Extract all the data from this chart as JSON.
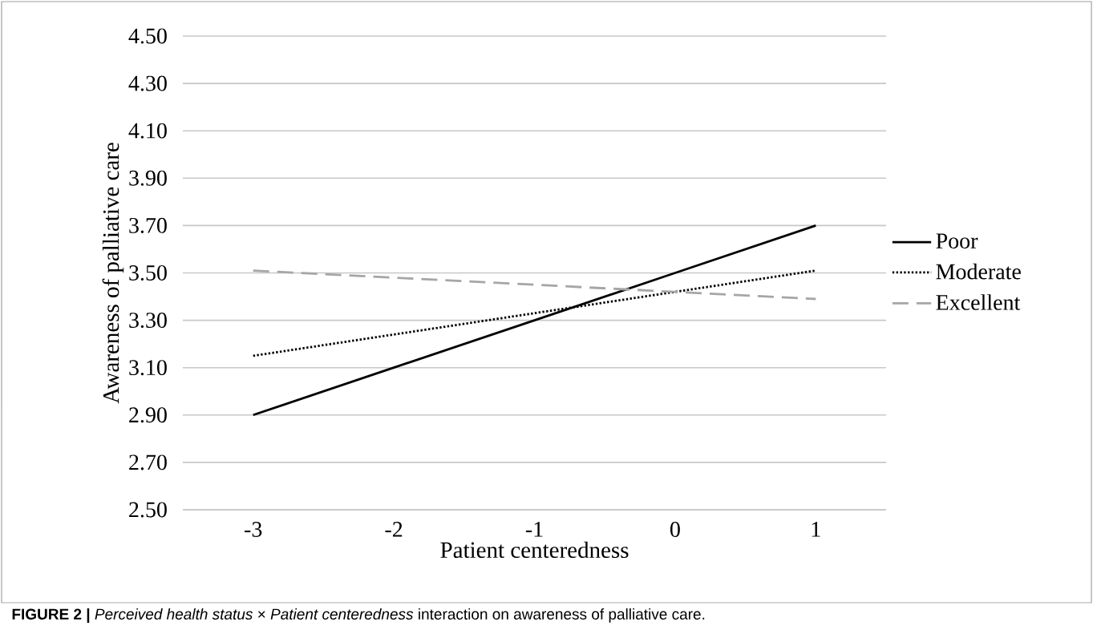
{
  "chart_data": {
    "type": "line",
    "xlabel": "Patient centeredness",
    "ylabel": "Awareness of palliative care",
    "categories": [
      "-3",
      "-2",
      "-1",
      "0",
      "1"
    ],
    "series": [
      {
        "name": "Poor",
        "color": "#000000",
        "line_style": "solid",
        "values": [
          2.9,
          3.1,
          3.3,
          3.5,
          3.7
        ]
      },
      {
        "name": "Moderate",
        "color": "#000000",
        "line_style": "dotted",
        "values": [
          3.15,
          3.24,
          3.33,
          3.42,
          3.51
        ]
      },
      {
        "name": "Excellent",
        "color": "#a6a6a6",
        "line_style": "dashed",
        "values": [
          3.51,
          3.48,
          3.45,
          3.42,
          3.39
        ]
      }
    ],
    "ylim": [
      2.5,
      4.5
    ],
    "yticks": [
      {
        "value": 2.5,
        "label": "2.50"
      },
      {
        "value": 2.7,
        "label": "2.70"
      },
      {
        "value": 2.9,
        "label": "2.90"
      },
      {
        "value": 3.1,
        "label": "3.10"
      },
      {
        "value": 3.3,
        "label": "3.30"
      },
      {
        "value": 3.5,
        "label": "3.50"
      },
      {
        "value": 3.7,
        "label": "3.70"
      },
      {
        "value": 3.9,
        "label": "3.90"
      },
      {
        "value": 4.1,
        "label": "4.10"
      },
      {
        "value": 4.3,
        "label": "4.30"
      },
      {
        "value": 4.5,
        "label": "4.50"
      }
    ],
    "grid": "y",
    "legend": "right",
    "marker": "none",
    "annotations": [
      "**FIGURE 2 |** *Perceived health status* × *Patient centeredness* interaction on awareness of palliative care."
    ]
  }
}
